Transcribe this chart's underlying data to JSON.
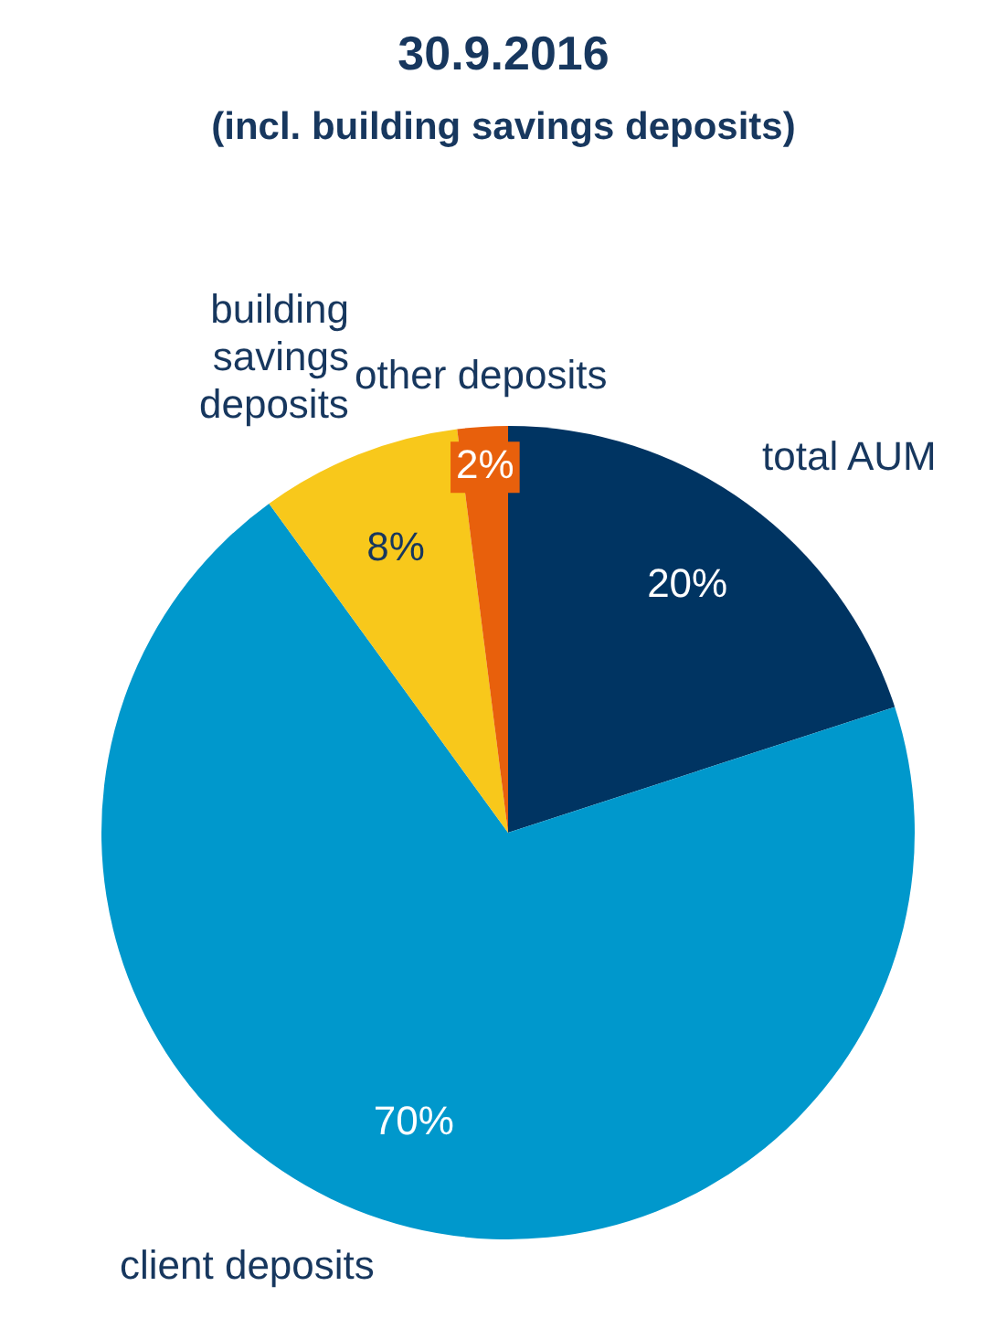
{
  "chart_data": {
    "type": "pie",
    "title": "30.9.2016",
    "subtitle": "(incl. building savings deposits)",
    "categories": [
      "total AUM",
      "client deposits",
      "building savings deposits",
      "other deposits"
    ],
    "values": [
      20,
      70,
      8,
      2
    ],
    "colors": [
      "#003462",
      "#0098cc",
      "#f8c81b",
      "#e8600c"
    ],
    "value_labels": [
      "20%",
      "70%",
      "8%",
      "2%"
    ],
    "legend": false
  }
}
